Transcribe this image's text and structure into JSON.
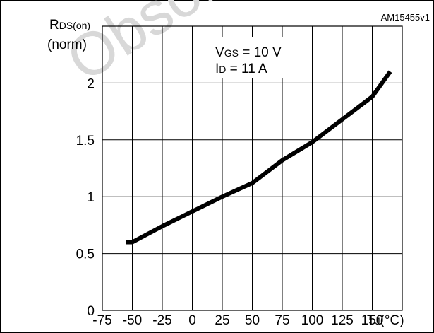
{
  "chart_data": {
    "type": "line",
    "figure_id": "AM15455v1",
    "watermark": "Obsolete",
    "ylabel": {
      "main": "R",
      "sub": "DS(on)",
      "line2": "(norm)"
    },
    "xlabel": {
      "main": "T",
      "sub": "J",
      "suffix": "(°C)"
    },
    "annotation": [
      {
        "main": "V",
        "sub": "GS",
        "rest": " = 10 V"
      },
      {
        "main": "I",
        "sub": "D",
        "rest": " = 11 A"
      }
    ],
    "xlim": [
      -75,
      175
    ],
    "ylim": [
      0,
      2.5
    ],
    "x_ticks": [
      -75,
      -50,
      -25,
      0,
      25,
      50,
      75,
      100,
      125,
      150
    ],
    "x_tick_labels": [
      "-75",
      "-50",
      "-25",
      "0",
      "25",
      "50",
      "75",
      "100",
      "125",
      "150"
    ],
    "y_ticks": [
      0,
      0.5,
      1,
      1.5,
      2
    ],
    "y_tick_labels": [
      "0",
      "0.5",
      "1",
      "1.5",
      "2"
    ],
    "grid": true,
    "series": [
      {
        "x": [
          -55,
          -50,
          -25,
          0,
          25,
          50,
          75,
          100,
          125,
          150,
          165
        ],
        "y": [
          0.6,
          0.6,
          0.74,
          0.87,
          1.0,
          1.12,
          1.32,
          1.48,
          1.68,
          1.88,
          2.1
        ]
      }
    ]
  }
}
